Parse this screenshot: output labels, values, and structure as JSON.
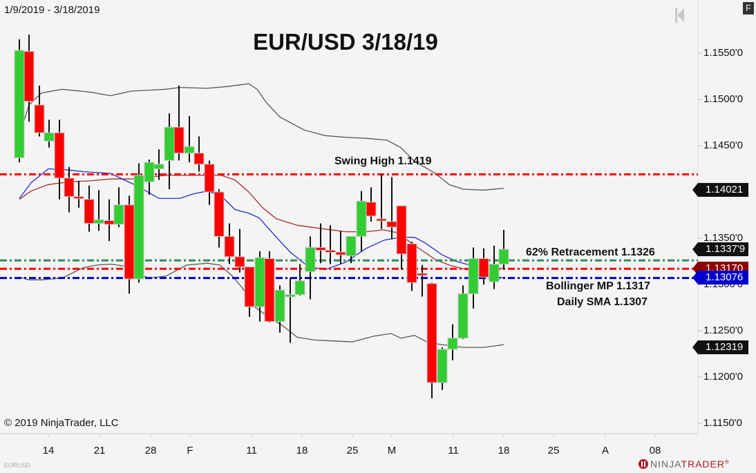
{
  "header": {
    "date_range": "1/9/2019 - 3/18/2019",
    "title": "EUR/USD 3/18/19",
    "f_button": "F"
  },
  "footer": {
    "copyright": "© 2019 NinjaTrader, LLC",
    "symbol": "EURUSD",
    "logo_ninja": "NINJA",
    "logo_trader": "TRADER",
    "logo_reg": "®"
  },
  "colors": {
    "background": "#f4f4f4",
    "up_candle": "#32cd32",
    "down_candle": "#ff0000",
    "bollinger_bands": "#555555",
    "sma_fast": "#2727d0",
    "sma_slow": "#a52a2a",
    "swing_high_line": "#ff0000",
    "retracement_line": "#2e8b57",
    "bollinger_mp_line": "#ff0000",
    "daily_sma_line": "#0000cd"
  },
  "annotations": {
    "swing_high": "Swing High 1.1419",
    "retracement": "62% Retracement 1.1326",
    "bollinger_mp": "Bollinger MP 1.1317",
    "daily_sma": "Daily SMA 1.1307"
  },
  "price_tags": [
    {
      "label": "1.14021",
      "price": 1.14021,
      "color": "#111111"
    },
    {
      "label": "1.1337'9",
      "price": 1.13379,
      "color": "#111111"
    },
    {
      "label": "1.13170",
      "price": 1.1317,
      "color": "#8b0000"
    },
    {
      "label": "1.13076",
      "price": 1.13076,
      "color": "#0000cd"
    },
    {
      "label": "1.12319",
      "price": 1.12319,
      "color": "#111111"
    }
  ],
  "chart_data": {
    "type": "candlestick",
    "title": "EUR/USD 3/18/19",
    "subtitle": "1/9/2019 - 3/18/2019",
    "xlabel": "",
    "ylabel": "",
    "ylim": [
      1.1135,
      1.159
    ],
    "grid": false,
    "legend": "none",
    "y_ticks": [
      "1.1550'0",
      "1.1500'0",
      "1.1450'0",
      "1.1350'0",
      "1.1300'0",
      "1.1250'0",
      "1.1200'0",
      "1.1150'0"
    ],
    "y_tick_values": [
      1.155,
      1.15,
      1.145,
      1.135,
      1.13,
      1.125,
      1.12,
      1.115
    ],
    "x_ticks": [
      "14",
      "21",
      "28",
      "F",
      "11",
      "18",
      "25",
      "M",
      "11",
      "18",
      "25",
      "A",
      "08"
    ],
    "x_tick_pos": [
      70,
      144,
      218,
      275,
      364,
      437,
      510,
      567,
      656,
      729,
      801,
      876,
      948
    ],
    "horizontal_lines": [
      {
        "name": "Swing High",
        "value": 1.1419,
        "color": "#ff0000",
        "style": "dash-dot"
      },
      {
        "name": "62% Retracement",
        "value": 1.1326,
        "color": "#2e8b57",
        "style": "dash-dot"
      },
      {
        "name": "Bollinger MP",
        "value": 1.1317,
        "color": "#ff0000",
        "style": "dash-dot"
      },
      {
        "name": "Daily SMA",
        "value": 1.1307,
        "color": "#0000cd",
        "style": "dash-dot"
      }
    ],
    "candles": [
      {
        "x": 28,
        "o": 1.1437,
        "h": 1.1565,
        "l": 1.1432,
        "c": 1.1553
      },
      {
        "x": 42,
        "o": 1.1552,
        "h": 1.157,
        "l": 1.1476,
        "c": 1.1498
      },
      {
        "x": 57,
        "o": 1.1494,
        "h": 1.1515,
        "l": 1.146,
        "c": 1.1464
      },
      {
        "x": 71,
        "o": 1.1455,
        "h": 1.1478,
        "l": 1.1448,
        "c": 1.1464
      },
      {
        "x": 86,
        "o": 1.1464,
        "h": 1.1478,
        "l": 1.1392,
        "c": 1.1415
      },
      {
        "x": 100,
        "o": 1.1415,
        "h": 1.1427,
        "l": 1.1378,
        "c": 1.1395
      },
      {
        "x": 114,
        "o": 1.1395,
        "h": 1.1412,
        "l": 1.1383,
        "c": 1.1393
      },
      {
        "x": 129,
        "o": 1.1392,
        "h": 1.1407,
        "l": 1.1357,
        "c": 1.1366
      },
      {
        "x": 143,
        "o": 1.1366,
        "h": 1.1402,
        "l": 1.1358,
        "c": 1.137
      },
      {
        "x": 158,
        "o": 1.1369,
        "h": 1.1392,
        "l": 1.1347,
        "c": 1.1365
      },
      {
        "x": 172,
        "o": 1.1365,
        "h": 1.1405,
        "l": 1.1362,
        "c": 1.1386
      },
      {
        "x": 187,
        "o": 1.1386,
        "h": 1.1396,
        "l": 1.129,
        "c": 1.1306
      },
      {
        "x": 201,
        "o": 1.1306,
        "h": 1.1431,
        "l": 1.1302,
        "c": 1.1418
      },
      {
        "x": 216,
        "o": 1.1411,
        "h": 1.1435,
        "l": 1.1397,
        "c": 1.1432
      },
      {
        "x": 230,
        "o": 1.1425,
        "h": 1.1446,
        "l": 1.1413,
        "c": 1.143
      },
      {
        "x": 245,
        "o": 1.1434,
        "h": 1.1485,
        "l": 1.1403,
        "c": 1.147
      },
      {
        "x": 259,
        "o": 1.147,
        "h": 1.1515,
        "l": 1.1434,
        "c": 1.1442
      },
      {
        "x": 274,
        "o": 1.1442,
        "h": 1.1482,
        "l": 1.1432,
        "c": 1.1449
      },
      {
        "x": 288,
        "o": 1.1442,
        "h": 1.146,
        "l": 1.1422,
        "c": 1.143
      },
      {
        "x": 303,
        "o": 1.143,
        "h": 1.1434,
        "l": 1.1386,
        "c": 1.14
      },
      {
        "x": 317,
        "o": 1.14,
        "h": 1.1403,
        "l": 1.134,
        "c": 1.1352
      },
      {
        "x": 332,
        "o": 1.1352,
        "h": 1.1366,
        "l": 1.1322,
        "c": 1.133
      },
      {
        "x": 347,
        "o": 1.133,
        "h": 1.136,
        "l": 1.1313,
        "c": 1.1319
      },
      {
        "x": 361,
        "o": 1.1319,
        "h": 1.1318,
        "l": 1.1265,
        "c": 1.1276
      },
      {
        "x": 376,
        "o": 1.1276,
        "h": 1.1336,
        "l": 1.126,
        "c": 1.1329
      },
      {
        "x": 390,
        "o": 1.1328,
        "h": 1.1336,
        "l": 1.1259,
        "c": 1.126
      },
      {
        "x": 405,
        "o": 1.126,
        "h": 1.1299,
        "l": 1.1248,
        "c": 1.1294
      },
      {
        "x": 420,
        "o": 1.1289,
        "h": 1.1307,
        "l": 1.1237,
        "c": 1.1289
      },
      {
        "x": 434,
        "o": 1.1289,
        "h": 1.1322,
        "l": 1.1288,
        "c": 1.1304
      },
      {
        "x": 449,
        "o": 1.1314,
        "h": 1.1352,
        "l": 1.1284,
        "c": 1.134
      },
      {
        "x": 464,
        "o": 1.134,
        "h": 1.1366,
        "l": 1.1323,
        "c": 1.1337
      },
      {
        "x": 478,
        "o": 1.1337,
        "h": 1.1364,
        "l": 1.1322,
        "c": 1.1336
      },
      {
        "x": 493,
        "o": 1.1335,
        "h": 1.1358,
        "l": 1.1322,
        "c": 1.1332
      },
      {
        "x": 508,
        "o": 1.1331,
        "h": 1.1352,
        "l": 1.1323,
        "c": 1.1352
      },
      {
        "x": 523,
        "o": 1.1352,
        "h": 1.1401,
        "l": 1.1336,
        "c": 1.139
      },
      {
        "x": 537,
        "o": 1.1389,
        "h": 1.1405,
        "l": 1.1368,
        "c": 1.1374
      },
      {
        "x": 552,
        "o": 1.1371,
        "h": 1.1419,
        "l": 1.136,
        "c": 1.137
      },
      {
        "x": 567,
        "o": 1.1368,
        "h": 1.1416,
        "l": 1.1349,
        "c": 1.1362
      },
      {
        "x": 581,
        "o": 1.1385,
        "h": 1.1381,
        "l": 1.1316,
        "c": 1.1333
      },
      {
        "x": 596,
        "o": 1.1344,
        "h": 1.1346,
        "l": 1.1293,
        "c": 1.1302
      },
      {
        "x": 611,
        "o": 1.1312,
        "h": 1.1321,
        "l": 1.1287,
        "c": 1.131
      },
      {
        "x": 625,
        "o": 1.1301,
        "h": 1.1302,
        "l": 1.1177,
        "c": 1.1194
      },
      {
        "x": 640,
        "o": 1.1194,
        "h": 1.1232,
        "l": 1.1186,
        "c": 1.123
      },
      {
        "x": 655,
        "o": 1.123,
        "h": 1.1257,
        "l": 1.1218,
        "c": 1.1242
      },
      {
        "x": 670,
        "o": 1.1242,
        "h": 1.1299,
        "l": 1.1241,
        "c": 1.129
      },
      {
        "x": 685,
        "o": 1.129,
        "h": 1.134,
        "l": 1.1274,
        "c": 1.1328
      },
      {
        "x": 700,
        "o": 1.1328,
        "h": 1.1339,
        "l": 1.13,
        "c": 1.1308
      },
      {
        "x": 715,
        "o": 1.1303,
        "h": 1.1342,
        "l": 1.1295,
        "c": 1.1322
      },
      {
        "x": 729,
        "o": 1.1322,
        "h": 1.1359,
        "l": 1.1316,
        "c": 1.1338
      }
    ],
    "indicators": {
      "bollinger_upper": [
        [
          28,
          1.1461
        ],
        [
          42,
          1.1494
        ],
        [
          60,
          1.1507
        ],
        [
          90,
          1.1511
        ],
        [
          130,
          1.1508
        ],
        [
          160,
          1.1504
        ],
        [
          190,
          1.1509
        ],
        [
          216,
          1.151
        ],
        [
          240,
          1.1511
        ],
        [
          260,
          1.1513
        ],
        [
          300,
          1.1512
        ],
        [
          330,
          1.1514
        ],
        [
          360,
          1.1517
        ],
        [
          372,
          1.1511
        ],
        [
          385,
          1.1497
        ],
        [
          405,
          1.1481
        ],
        [
          440,
          1.1467
        ],
        [
          470,
          1.1461
        ],
        [
          500,
          1.1459
        ],
        [
          530,
          1.1458
        ],
        [
          560,
          1.1456
        ],
        [
          580,
          1.1448
        ],
        [
          600,
          1.1433
        ],
        [
          630,
          1.142
        ],
        [
          650,
          1.1408
        ],
        [
          670,
          1.1403
        ],
        [
          700,
          1.1402
        ],
        [
          729,
          1.1404
        ]
      ],
      "bollinger_lower": [
        [
          28,
          1.1308
        ],
        [
          42,
          1.1305
        ],
        [
          60,
          1.1305
        ],
        [
          90,
          1.1307
        ],
        [
          120,
          1.1318
        ],
        [
          140,
          1.1321
        ],
        [
          160,
          1.1322
        ],
        [
          180,
          1.132
        ],
        [
          200,
          1.1311
        ],
        [
          216,
          1.1307
        ],
        [
          240,
          1.1309
        ],
        [
          270,
          1.1321
        ],
        [
          300,
          1.1323
        ],
        [
          318,
          1.1321
        ],
        [
          335,
          1.131
        ],
        [
          350,
          1.1297
        ],
        [
          370,
          1.1275
        ],
        [
          390,
          1.1264
        ],
        [
          410,
          1.1255
        ],
        [
          430,
          1.1243
        ],
        [
          455,
          1.124
        ],
        [
          480,
          1.1239
        ],
        [
          510,
          1.1238
        ],
        [
          540,
          1.1244
        ],
        [
          566,
          1.1247
        ],
        [
          580,
          1.1242
        ],
        [
          600,
          1.1245
        ],
        [
          620,
          1.1237
        ],
        [
          640,
          1.1235
        ],
        [
          670,
          1.1232
        ],
        [
          700,
          1.1232
        ],
        [
          729,
          1.1235
        ]
      ],
      "sma_fast": [
        [
          28,
          1.1393
        ],
        [
          45,
          1.141
        ],
        [
          70,
          1.1425
        ],
        [
          95,
          1.1424
        ],
        [
          120,
          1.1422
        ],
        [
          160,
          1.142
        ],
        [
          180,
          1.1413
        ],
        [
          200,
          1.1406
        ],
        [
          216,
          1.1399
        ],
        [
          230,
          1.1393
        ],
        [
          260,
          1.1393
        ],
        [
          280,
          1.1398
        ],
        [
          300,
          1.1401
        ],
        [
          320,
          1.1396
        ],
        [
          340,
          1.1381
        ],
        [
          360,
          1.1377
        ],
        [
          375,
          1.1372
        ],
        [
          400,
          1.1351
        ],
        [
          420,
          1.1335
        ],
        [
          445,
          1.132
        ],
        [
          470,
          1.1316
        ],
        [
          500,
          1.1324
        ],
        [
          530,
          1.1339
        ],
        [
          556,
          1.1348
        ],
        [
          580,
          1.1351
        ],
        [
          600,
          1.1351
        ],
        [
          615,
          1.1345
        ],
        [
          640,
          1.1332
        ],
        [
          660,
          1.1325
        ],
        [
          685,
          1.132
        ],
        [
          700,
          1.1313
        ],
        [
          715,
          1.1309
        ],
        [
          729,
          1.1307
        ]
      ],
      "sma_slow": [
        [
          28,
          1.1392
        ],
        [
          45,
          1.1401
        ],
        [
          70,
          1.1408
        ],
        [
          100,
          1.1411
        ],
        [
          130,
          1.1412
        ],
        [
          160,
          1.1414
        ],
        [
          190,
          1.1414
        ],
        [
          216,
          1.1416
        ],
        [
          240,
          1.1418
        ],
        [
          260,
          1.1418
        ],
        [
          300,
          1.1418
        ],
        [
          320,
          1.1418
        ],
        [
          340,
          1.1413
        ],
        [
          360,
          1.14
        ],
        [
          380,
          1.1383
        ],
        [
          400,
          1.1371
        ],
        [
          430,
          1.1364
        ],
        [
          460,
          1.1361
        ],
        [
          500,
          1.1357
        ],
        [
          530,
          1.1357
        ],
        [
          555,
          1.1359
        ],
        [
          575,
          1.1356
        ],
        [
          595,
          1.1345
        ],
        [
          610,
          1.1337
        ],
        [
          630,
          1.1327
        ],
        [
          650,
          1.1321
        ],
        [
          670,
          1.1317
        ],
        [
          690,
          1.1314
        ],
        [
          710,
          1.1314
        ],
        [
          729,
          1.1318
        ]
      ]
    }
  }
}
